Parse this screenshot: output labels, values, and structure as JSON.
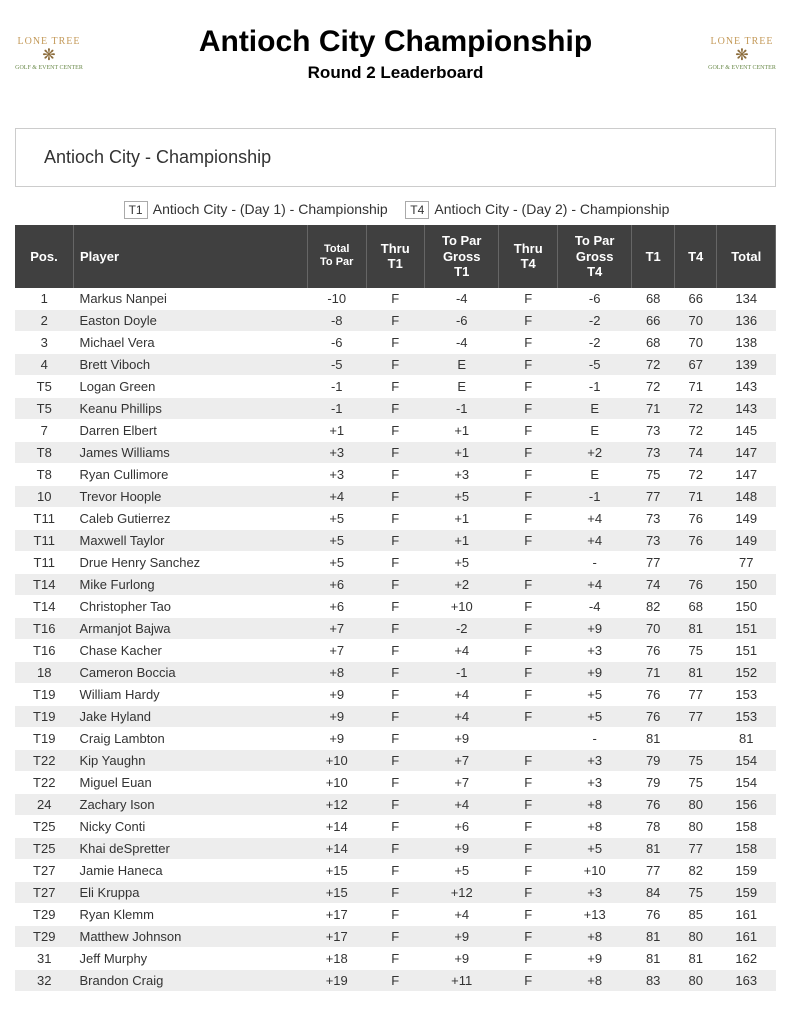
{
  "header": {
    "title": "Antioch City Championship",
    "subtitle": "Round 2 Leaderboard",
    "logo_top": "LONE TREE",
    "logo_bottom": "GOLF & EVENT CENTER"
  },
  "section_title": "Antioch City - Championship",
  "legend": {
    "t1_box": "T1",
    "t1_label": "Antioch City - (Day 1) - Championship",
    "t4_box": "T4",
    "t4_label": "Antioch City - (Day 2) - Championship"
  },
  "columns": {
    "pos": "Pos.",
    "player": "Player",
    "total_to_par": "Total\nTo Par",
    "thru_t1": "Thru\nT1",
    "topar_t1": "To Par\nGross\nT1",
    "thru_t4": "Thru\nT4",
    "topar_t4": "To Par\nGross\nT4",
    "t1": "T1",
    "t4": "T4",
    "total": "Total"
  },
  "rows": [
    {
      "pos": "1",
      "player": "Markus Nanpei",
      "total_to_par": "-10",
      "thru_t1": "F",
      "topar_t1": "-4",
      "thru_t4": "F",
      "topar_t4": "-6",
      "t1": "68",
      "t4": "66",
      "total": "134"
    },
    {
      "pos": "2",
      "player": "Easton Doyle",
      "total_to_par": "-8",
      "thru_t1": "F",
      "topar_t1": "-6",
      "thru_t4": "F",
      "topar_t4": "-2",
      "t1": "66",
      "t4": "70",
      "total": "136"
    },
    {
      "pos": "3",
      "player": "Michael Vera",
      "total_to_par": "-6",
      "thru_t1": "F",
      "topar_t1": "-4",
      "thru_t4": "F",
      "topar_t4": "-2",
      "t1": "68",
      "t4": "70",
      "total": "138"
    },
    {
      "pos": "4",
      "player": "Brett Viboch",
      "total_to_par": "-5",
      "thru_t1": "F",
      "topar_t1": "E",
      "thru_t4": "F",
      "topar_t4": "-5",
      "t1": "72",
      "t4": "67",
      "total": "139"
    },
    {
      "pos": "T5",
      "player": "Logan Green",
      "total_to_par": "-1",
      "thru_t1": "F",
      "topar_t1": "E",
      "thru_t4": "F",
      "topar_t4": "-1",
      "t1": "72",
      "t4": "71",
      "total": "143"
    },
    {
      "pos": "T5",
      "player": "Keanu Phillips",
      "total_to_par": "-1",
      "thru_t1": "F",
      "topar_t1": "-1",
      "thru_t4": "F",
      "topar_t4": "E",
      "t1": "71",
      "t4": "72",
      "total": "143"
    },
    {
      "pos": "7",
      "player": "Darren Elbert",
      "total_to_par": "+1",
      "thru_t1": "F",
      "topar_t1": "+1",
      "thru_t4": "F",
      "topar_t4": "E",
      "t1": "73",
      "t4": "72",
      "total": "145"
    },
    {
      "pos": "T8",
      "player": "James Williams",
      "total_to_par": "+3",
      "thru_t1": "F",
      "topar_t1": "+1",
      "thru_t4": "F",
      "topar_t4": "+2",
      "t1": "73",
      "t4": "74",
      "total": "147"
    },
    {
      "pos": "T8",
      "player": "Ryan Cullimore",
      "total_to_par": "+3",
      "thru_t1": "F",
      "topar_t1": "+3",
      "thru_t4": "F",
      "topar_t4": "E",
      "t1": "75",
      "t4": "72",
      "total": "147"
    },
    {
      "pos": "10",
      "player": "Trevor Hoople",
      "total_to_par": "+4",
      "thru_t1": "F",
      "topar_t1": "+5",
      "thru_t4": "F",
      "topar_t4": "-1",
      "t1": "77",
      "t4": "71",
      "total": "148"
    },
    {
      "pos": "T11",
      "player": "Caleb Gutierrez",
      "total_to_par": "+5",
      "thru_t1": "F",
      "topar_t1": "+1",
      "thru_t4": "F",
      "topar_t4": "+4",
      "t1": "73",
      "t4": "76",
      "total": "149"
    },
    {
      "pos": "T11",
      "player": "Maxwell Taylor",
      "total_to_par": "+5",
      "thru_t1": "F",
      "topar_t1": "+1",
      "thru_t4": "F",
      "topar_t4": "+4",
      "t1": "73",
      "t4": "76",
      "total": "149"
    },
    {
      "pos": "T11",
      "player": "Drue Henry Sanchez",
      "total_to_par": "+5",
      "thru_t1": "F",
      "topar_t1": "+5",
      "thru_t4": "",
      "topar_t4": "-",
      "t1": "77",
      "t4": "",
      "total": "77"
    },
    {
      "pos": "T14",
      "player": "Mike Furlong",
      "total_to_par": "+6",
      "thru_t1": "F",
      "topar_t1": "+2",
      "thru_t4": "F",
      "topar_t4": "+4",
      "t1": "74",
      "t4": "76",
      "total": "150"
    },
    {
      "pos": "T14",
      "player": "Christopher Tao",
      "total_to_par": "+6",
      "thru_t1": "F",
      "topar_t1": "+10",
      "thru_t4": "F",
      "topar_t4": "-4",
      "t1": "82",
      "t4": "68",
      "total": "150"
    },
    {
      "pos": "T16",
      "player": "Armanjot Bajwa",
      "total_to_par": "+7",
      "thru_t1": "F",
      "topar_t1": "-2",
      "thru_t4": "F",
      "topar_t4": "+9",
      "t1": "70",
      "t4": "81",
      "total": "151"
    },
    {
      "pos": "T16",
      "player": "Chase Kacher",
      "total_to_par": "+7",
      "thru_t1": "F",
      "topar_t1": "+4",
      "thru_t4": "F",
      "topar_t4": "+3",
      "t1": "76",
      "t4": "75",
      "total": "151"
    },
    {
      "pos": "18",
      "player": "Cameron Boccia",
      "total_to_par": "+8",
      "thru_t1": "F",
      "topar_t1": "-1",
      "thru_t4": "F",
      "topar_t4": "+9",
      "t1": "71",
      "t4": "81",
      "total": "152"
    },
    {
      "pos": "T19",
      "player": "William Hardy",
      "total_to_par": "+9",
      "thru_t1": "F",
      "topar_t1": "+4",
      "thru_t4": "F",
      "topar_t4": "+5",
      "t1": "76",
      "t4": "77",
      "total": "153"
    },
    {
      "pos": "T19",
      "player": "Jake Hyland",
      "total_to_par": "+9",
      "thru_t1": "F",
      "topar_t1": "+4",
      "thru_t4": "F",
      "topar_t4": "+5",
      "t1": "76",
      "t4": "77",
      "total": "153"
    },
    {
      "pos": "T19",
      "player": "Craig Lambton",
      "total_to_par": "+9",
      "thru_t1": "F",
      "topar_t1": "+9",
      "thru_t4": "",
      "topar_t4": "-",
      "t1": "81",
      "t4": "",
      "total": "81"
    },
    {
      "pos": "T22",
      "player": "Kip Yaughn",
      "total_to_par": "+10",
      "thru_t1": "F",
      "topar_t1": "+7",
      "thru_t4": "F",
      "topar_t4": "+3",
      "t1": "79",
      "t4": "75",
      "total": "154"
    },
    {
      "pos": "T22",
      "player": "Miguel Euan",
      "total_to_par": "+10",
      "thru_t1": "F",
      "topar_t1": "+7",
      "thru_t4": "F",
      "topar_t4": "+3",
      "t1": "79",
      "t4": "75",
      "total": "154"
    },
    {
      "pos": "24",
      "player": "Zachary Ison",
      "total_to_par": "+12",
      "thru_t1": "F",
      "topar_t1": "+4",
      "thru_t4": "F",
      "topar_t4": "+8",
      "t1": "76",
      "t4": "80",
      "total": "156"
    },
    {
      "pos": "T25",
      "player": "Nicky Conti",
      "total_to_par": "+14",
      "thru_t1": "F",
      "topar_t1": "+6",
      "thru_t4": "F",
      "topar_t4": "+8",
      "t1": "78",
      "t4": "80",
      "total": "158"
    },
    {
      "pos": "T25",
      "player": "Khai deSpretter",
      "total_to_par": "+14",
      "thru_t1": "F",
      "topar_t1": "+9",
      "thru_t4": "F",
      "topar_t4": "+5",
      "t1": "81",
      "t4": "77",
      "total": "158"
    },
    {
      "pos": "T27",
      "player": "Jamie Haneca",
      "total_to_par": "+15",
      "thru_t1": "F",
      "topar_t1": "+5",
      "thru_t4": "F",
      "topar_t4": "+10",
      "t1": "77",
      "t4": "82",
      "total": "159"
    },
    {
      "pos": "T27",
      "player": "Eli Kruppa",
      "total_to_par": "+15",
      "thru_t1": "F",
      "topar_t1": "+12",
      "thru_t4": "F",
      "topar_t4": "+3",
      "t1": "84",
      "t4": "75",
      "total": "159"
    },
    {
      "pos": "T29",
      "player": "Ryan Klemm",
      "total_to_par": "+17",
      "thru_t1": "F",
      "topar_t1": "+4",
      "thru_t4": "F",
      "topar_t4": "+13",
      "t1": "76",
      "t4": "85",
      "total": "161"
    },
    {
      "pos": "T29",
      "player": "Matthew Johnson",
      "total_to_par": "+17",
      "thru_t1": "F",
      "topar_t1": "+9",
      "thru_t4": "F",
      "topar_t4": "+8",
      "t1": "81",
      "t4": "80",
      "total": "161"
    },
    {
      "pos": "31",
      "player": "Jeff Murphy",
      "total_to_par": "+18",
      "thru_t1": "F",
      "topar_t1": "+9",
      "thru_t4": "F",
      "topar_t4": "+9",
      "t1": "81",
      "t4": "81",
      "total": "162"
    },
    {
      "pos": "32",
      "player": "Brandon Craig",
      "total_to_par": "+19",
      "thru_t1": "F",
      "topar_t1": "+11",
      "thru_t4": "F",
      "topar_t4": "+8",
      "t1": "83",
      "t4": "80",
      "total": "163"
    }
  ]
}
